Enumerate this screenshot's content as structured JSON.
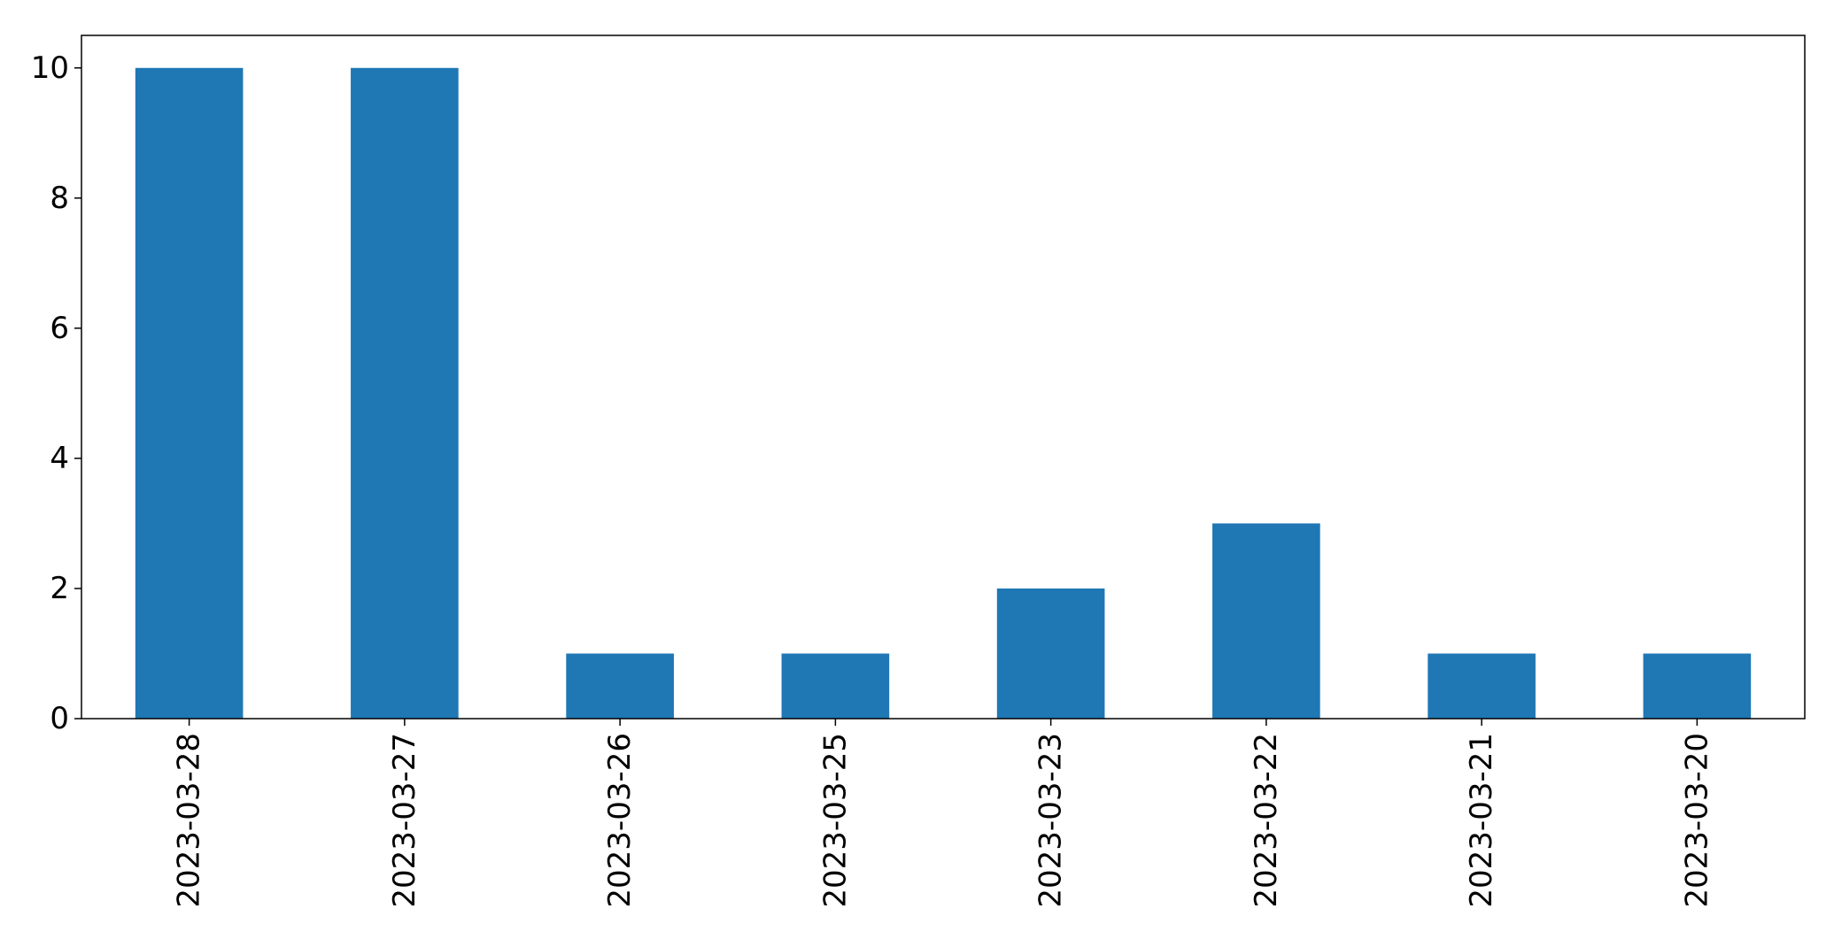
{
  "chart_data": {
    "type": "bar",
    "title": "",
    "xlabel": "",
    "ylabel": "",
    "categories": [
      "2023-03-28",
      "2023-03-27",
      "2023-03-26",
      "2023-03-25",
      "2023-03-23",
      "2023-03-22",
      "2023-03-21",
      "2023-03-20"
    ],
    "values": [
      10,
      10,
      1,
      1,
      2,
      3,
      1,
      1
    ],
    "ylim": [
      0,
      10.5
    ],
    "yticks": [
      0,
      2,
      4,
      6,
      8,
      10
    ],
    "grid": false,
    "legend": "none",
    "colors": {
      "bar": "#1f77b4",
      "axis": "#000000",
      "background": "#ffffff"
    }
  }
}
